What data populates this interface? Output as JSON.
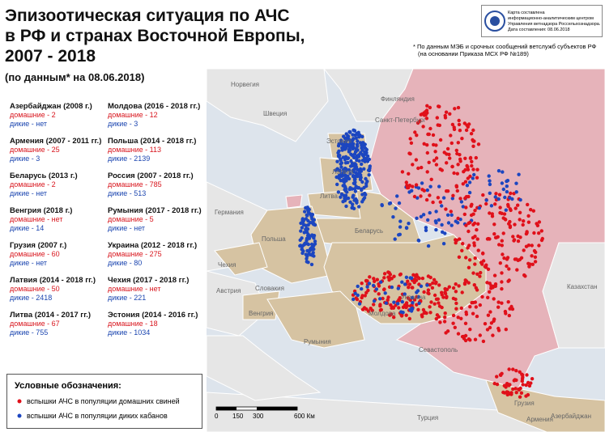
{
  "title": [
    "Эпизоотическая ситуация по АЧС",
    "в РФ и странах Восточной Европы,",
    "2007 - 2018"
  ],
  "subtitle": "(по данным* на 08.06.2018)",
  "countries": [
    {
      "name": "Азербайджан (2008 г.)",
      "domestic": "домашние - 2",
      "wild": "дикие - нет"
    },
    {
      "name": "Армения (2007 - 2011 гг.)",
      "domestic": "домашние - 25",
      "wild": "дикие - 3"
    },
    {
      "name": "Беларусь (2013 г.)",
      "domestic": "домашние - 2",
      "wild": "дикие - нет"
    },
    {
      "name": "Венгрия (2018 г.)",
      "domestic": "домашние - нет",
      "wild": "дикие - 14"
    },
    {
      "name": "Грузия (2007 г.)",
      "domestic": "домашние - 60",
      "wild": "дикие - нет"
    },
    {
      "name": "Латвия (2014 - 2018 гг.)",
      "domestic": "домашние - 50",
      "wild": "дикие - 2418"
    },
    {
      "name": "Литва (2014 - 2017 гг.)",
      "domestic": "домашние - 67",
      "wild": "дикие - 755"
    },
    {
      "name": "Молдова (2016 - 2018 гг.)",
      "domestic": "домашние - 12",
      "wild": "дикие - 3"
    },
    {
      "name": "Польша (2014 - 2018 гг.)",
      "domestic": "домашние - 113",
      "wild": "дикие - 2139"
    },
    {
      "name": "Россия (2007 - 2018 гг.)",
      "domestic": "домашние - 785",
      "wild": "дикие - 513"
    },
    {
      "name": "Румыния (2017 - 2018 гг.)",
      "domestic": "домашние - 5",
      "wild": "дикие - нет"
    },
    {
      "name": "Украина (2012 - 2018 гг.)",
      "domestic": "домашние - 275",
      "wild": "дикие - 80"
    },
    {
      "name": "Чехия (2017 - 2018 гг.)",
      "domestic": "домашние - нет",
      "wild": "дикие - 221"
    },
    {
      "name": "Эстония (2014 - 2016 гг.)",
      "domestic": "домашние - 18",
      "wild": "дикие - 1034"
    }
  ],
  "footnote": [
    "* По данным МЭБ и срочных сообщений ветслужб субъектов РФ",
    "(на основании Приказа МСХ РФ №189)"
  ],
  "logo_text": [
    "Карта составлена",
    "информационно-аналитическим центром",
    "Управления ветнадзора Россельхознадзора.",
    "Дата составления: 08.06.2018"
  ],
  "legend": {
    "title": "Условные обозначения:",
    "domestic": "вспышки АЧС в популяции домашних свиней",
    "wild": "вспышки АЧС в популяции диких кабанов"
  },
  "scale": [
    "0",
    "150",
    "300",
    "600 Км"
  ],
  "map_labels": [
    "Норвегия",
    "Швеция",
    "Финляндия",
    "Санкт-Петербург",
    "Эстония",
    "Латвия",
    "Литва",
    "Германия",
    "Польша",
    "Беларусь",
    "Чехия",
    "Австрия",
    "Словакия",
    "Венгрия",
    "Украина",
    "Молдова",
    "Румыния",
    "Казахстан",
    "Севастополь",
    "Грузия",
    "Армения",
    "Азербайджан",
    "Турция"
  ]
}
